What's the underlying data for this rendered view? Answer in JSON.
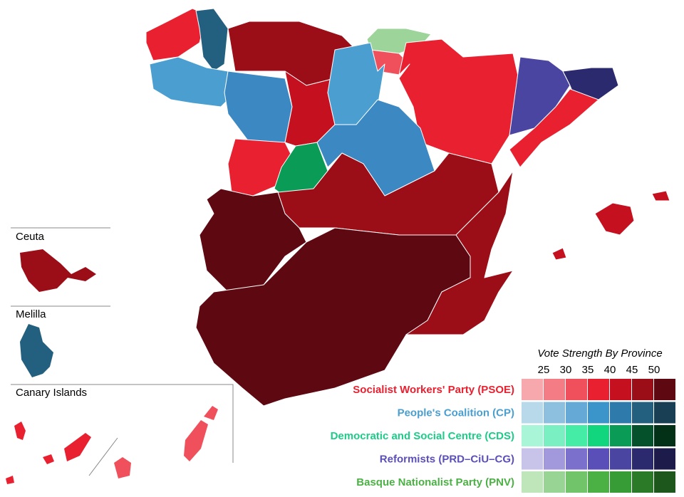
{
  "insets": [
    {
      "label": "Ceuta"
    },
    {
      "label": "Melilla"
    },
    {
      "label": "Canary Islands"
    }
  ],
  "legend": {
    "title": "Vote Strength By Province",
    "ticks": [
      25,
      30,
      35,
      40,
      45,
      50
    ],
    "parties": [
      {
        "name": "Socialist Workers' Party (PSOE)",
        "color": "#e8202f",
        "swatches": [
          "#f7a8ad",
          "#f47c84",
          "#f0505b",
          "#e8202f",
          "#c4101f",
          "#9b0d17",
          "#5e0811"
        ]
      },
      {
        "name": "People's Coalition (CP)",
        "color": "#4a9fd0",
        "swatches": [
          "#b8d9ea",
          "#8cc0de",
          "#65a9d6",
          "#3c95ca",
          "#2e7bab",
          "#23607f",
          "#183f54"
        ]
      },
      {
        "name": "Democratic and Social Centre (CDS)",
        "color": "#1ccc88",
        "swatches": [
          "#a9f5d8",
          "#7af0c2",
          "#44eca5",
          "#11d67d",
          "#0a9b57",
          "#04512c",
          "#023117"
        ]
      },
      {
        "name": "Reformists (PRD–CiU–CG)",
        "color": "#5a4fb8",
        "swatches": [
          "#c8c3e8",
          "#a199db",
          "#7b70cc",
          "#5a4fb8",
          "#4a45a0",
          "#2b2a6f",
          "#1c1b4a"
        ]
      },
      {
        "name": "Basque Nationalist Party (PNV)",
        "color": "#4cb145",
        "swatches": [
          "#bfe5bb",
          "#98d493",
          "#72c46b",
          "#4cb145",
          "#379c36",
          "#2a7a28",
          "#1d571c"
        ]
      }
    ]
  }
}
